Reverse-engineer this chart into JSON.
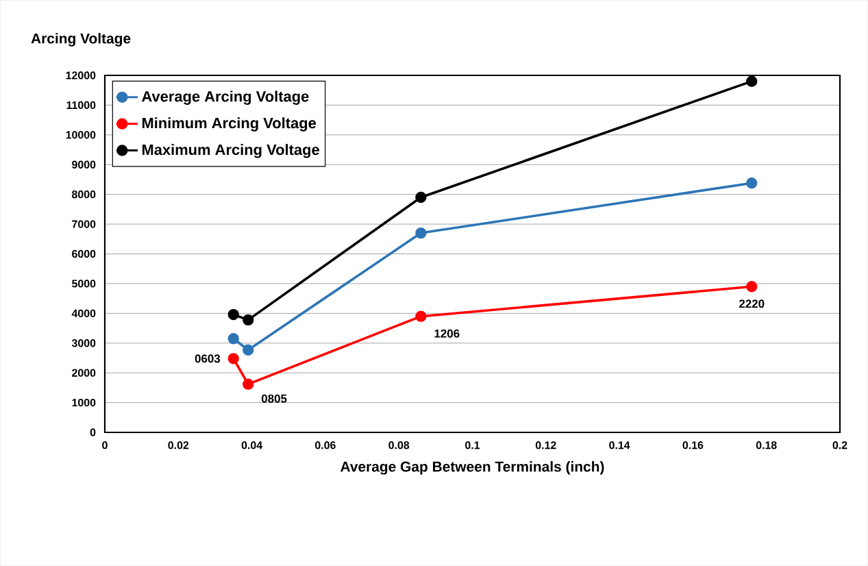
{
  "chart_data": {
    "type": "line",
    "xlabel": "Average Gap Between Terminals (inch)",
    "ylabel": "Arcing Voltage",
    "x": [
      0.035,
      0.039,
      0.086,
      0.176
    ],
    "series": [
      {
        "name": "Average Arcing Voltage",
        "color": "#2e75b6",
        "values": [
          3150,
          2770,
          6700,
          8380
        ]
      },
      {
        "name": "Minimum Arcing Voltage",
        "color": "#ff0000",
        "values": [
          2480,
          1620,
          3900,
          4900
        ]
      },
      {
        "name": "Maximum Arcing Voltage",
        "color": "#000000",
        "values": [
          3960,
          3780,
          7900,
          11800
        ]
      }
    ],
    "annotations": [
      {
        "text": "0603",
        "x": 0.035,
        "y": 2480
      },
      {
        "text": "0805",
        "x": 0.039,
        "y": 1620
      },
      {
        "text": "1206",
        "x": 0.086,
        "y": 3900
      },
      {
        "text": "2220",
        "x": 0.176,
        "y": 4900
      }
    ],
    "xlim": [
      0,
      0.2
    ],
    "xticks": [
      0,
      0.02,
      0.04,
      0.06,
      0.08,
      0.1,
      0.12,
      0.14,
      0.16,
      0.18,
      0.2
    ],
    "ylim": [
      0,
      12000
    ],
    "yticks": [
      0,
      1000,
      2000,
      3000,
      4000,
      5000,
      6000,
      7000,
      8000,
      9000,
      10000,
      11000,
      12000
    ],
    "grid": "y",
    "legend": "top left",
    "marker": "circle",
    "line_style": "solid"
  }
}
